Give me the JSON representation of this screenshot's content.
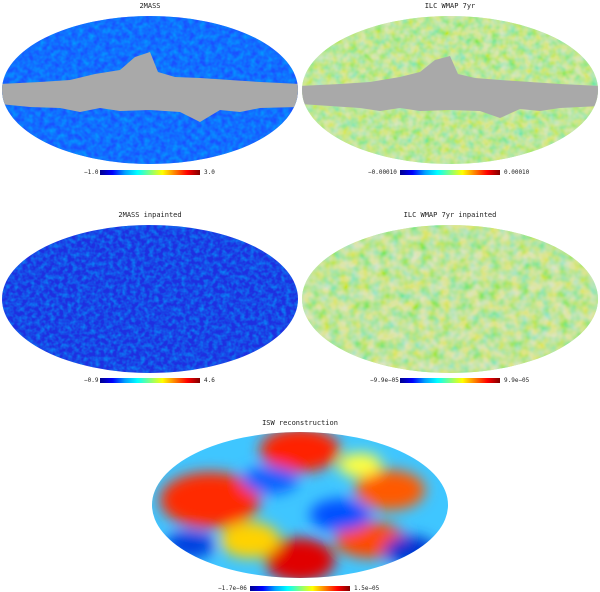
{
  "panels": [
    {
      "id": "p1",
      "title": "2MASS",
      "min_label": "−1.0",
      "max_label": "3.0"
    },
    {
      "id": "p2",
      "title": "ILC WMAP 7yr",
      "min_label": "−0.00010",
      "max_label": "0.00010"
    },
    {
      "id": "p3",
      "title": "2MASS inpainted",
      "min_label": "−0.9",
      "max_label": "4.6"
    },
    {
      "id": "p4",
      "title": "ILC WMAP 7yr inpainted",
      "min_label": "−9.9e−05",
      "max_label": "9.9e−05"
    },
    {
      "id": "p5",
      "title": "ISW reconstruction",
      "min_label": "−1.7e−06",
      "max_label": "1.5e−05"
    }
  ],
  "colors": {
    "mask": "#a9a9a9",
    "colormap": [
      "#00008f",
      "#0000ff",
      "#00a0ff",
      "#00ffff",
      "#80ff80",
      "#ffff00",
      "#ff8000",
      "#ff0000",
      "#800000"
    ]
  }
}
